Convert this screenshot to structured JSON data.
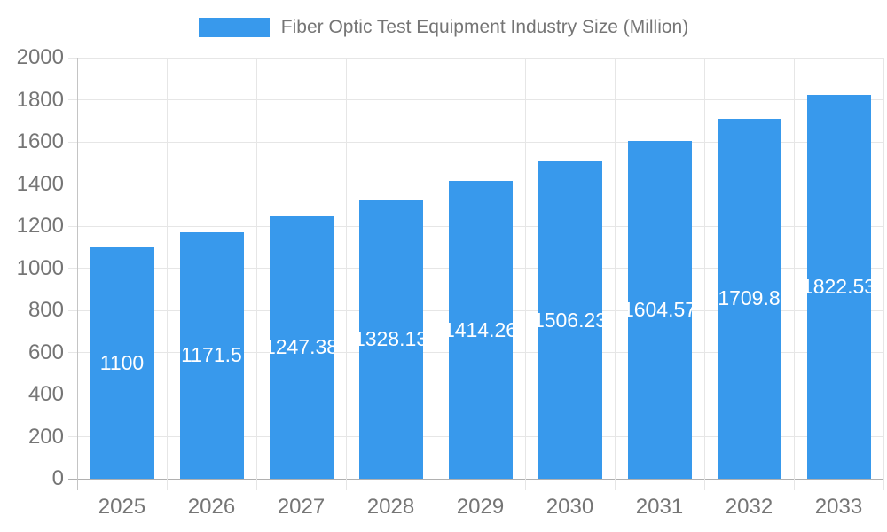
{
  "chart_data": {
    "type": "bar",
    "title": "Fiber Optic Test Equipment Industry Size (Million)",
    "legend": {
      "position": "top",
      "label": "Fiber Optic Test Equipment Industry Size (Million)"
    },
    "categories": [
      "2025",
      "2026",
      "2027",
      "2028",
      "2029",
      "2030",
      "2031",
      "2032",
      "2033"
    ],
    "values": [
      1100,
      1171.5,
      1247.38,
      1328.13,
      1414.26,
      1506.23,
      1604.57,
      1709.8,
      1822.53
    ],
    "value_labels": [
      "1100",
      "1171.5",
      "1247.38",
      "1328.13",
      "1414.26",
      "1506.23",
      "1604.57",
      "1709.8",
      "1822.53"
    ],
    "xlabel": "",
    "ylabel": "",
    "ylim": [
      0,
      2000
    ],
    "yticks": [
      0,
      200,
      400,
      600,
      800,
      1000,
      1200,
      1400,
      1600,
      1800,
      2000
    ],
    "grid": "on",
    "colors": {
      "bar": "#3899EC",
      "axis_text": "#757575",
      "grid_line": "#E6E6E6",
      "zero_line": "#B0B0B0",
      "axis_line": "#C4C4C4",
      "value_text": "#FFFFFF",
      "background": "#FFFFFF"
    }
  }
}
